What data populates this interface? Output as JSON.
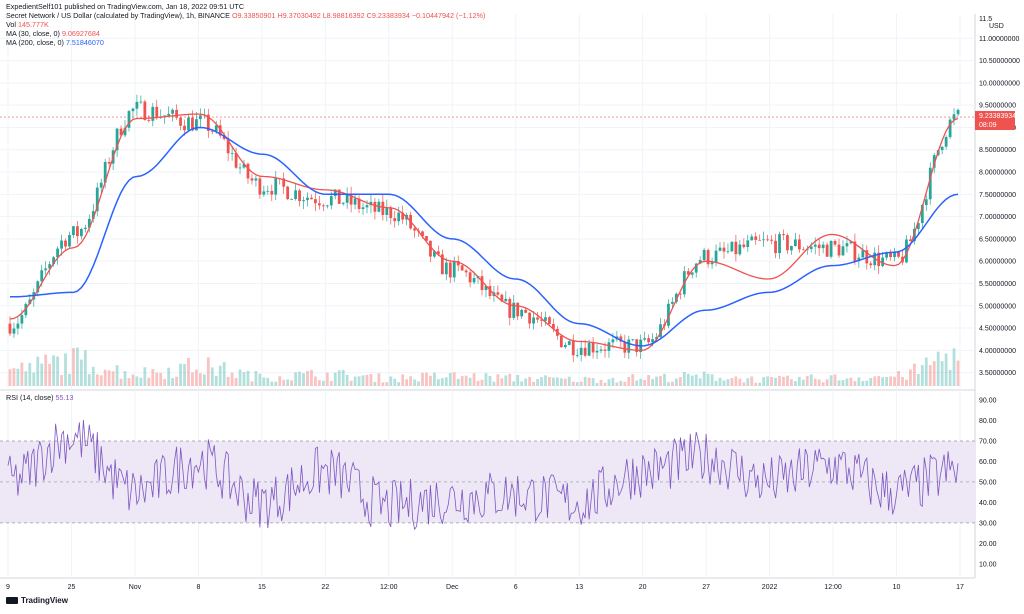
{
  "header": {
    "publisher": "ExpedientSelf101 published on TradingView.com, Jan 18, 2022 09:51 UTC",
    "symbol": "Secret Network / US Dollar (calculated by TradingView), 1h, BINANCE",
    "ohlc": "O9.33850901 H9.37030492 L8.98816392 C9.23383934 −0.10447942 (−1.12%)",
    "vol_label": "Vol",
    "vol_value": "145.777K",
    "ma30_label": "MA (30, close, 0)",
    "ma30_value": "9.06927684",
    "ma200_label": "MA (200, close, 0)",
    "ma200_value": "7.51846070",
    "rsi_label": "RSI (14, close)",
    "rsi_value": "55.13"
  },
  "price_axis": {
    "currency": "USD",
    "top_label": "11.5",
    "current_price": "9.23383934",
    "countdown": "08:09"
  },
  "footer": {
    "brand": "TradingView"
  },
  "colors": {
    "up": "#26a69a",
    "down": "#ef5350",
    "ma30": "#ef5350",
    "ma200": "#2962ff",
    "rsi": "#7e57c2",
    "rsi_band": "#ede7f6",
    "grid": "#f0f3fa"
  },
  "chart_data": [
    {
      "type": "line",
      "title": "Secret Network / US Dollar (calculated by TradingView), 1h, BINANCE",
      "x_ticks": [
        "9",
        "25",
        "Nov",
        "8",
        "15",
        "22",
        "12:00",
        "Dec",
        "6",
        "13",
        "20",
        "27",
        "2022",
        "12:00",
        "10",
        "17"
      ],
      "y_ticks": [
        "3.50000000",
        "4.00000000",
        "4.50000000",
        "5.00000000",
        "5.50000000",
        "6.00000000",
        "6.50000000",
        "7.00000000",
        "7.50000000",
        "8.00000000",
        "8.50000000",
        "9.00000000",
        "9.50000000",
        "10.00000000",
        "10.50000000",
        "11.00000000"
      ],
      "ylim": [
        3.2,
        11.5
      ],
      "series": [
        {
          "name": "MA (30, close, 0)",
          "x": [
            "9",
            "25",
            "Nov",
            "8",
            "15",
            "22",
            "12:00",
            "Dec",
            "6",
            "13",
            "20",
            "27",
            "2022",
            "12:00",
            "10",
            "17"
          ],
          "values": [
            4.7,
            6.3,
            9.2,
            9.3,
            7.9,
            7.6,
            7.2,
            6.0,
            5.0,
            4.2,
            4.0,
            6.0,
            5.6,
            6.6,
            5.9,
            9.2
          ]
        },
        {
          "name": "MA (200, close, 0)",
          "x": [
            "9",
            "25",
            "Nov",
            "8",
            "15",
            "22",
            "12:00",
            "Dec",
            "6",
            "13",
            "20",
            "27",
            "2022",
            "12:00",
            "10",
            "17"
          ],
          "values": [
            5.2,
            5.3,
            7.9,
            9.0,
            8.4,
            7.5,
            7.5,
            6.5,
            5.6,
            4.6,
            4.1,
            4.9,
            5.3,
            5.9,
            6.2,
            7.5
          ]
        }
      ],
      "price_series": {
        "x": [
          "9",
          "25",
          "Nov",
          "8",
          "15",
          "22",
          "12:00",
          "Dec",
          "6",
          "13",
          "20",
          "27",
          "2022",
          "12:00",
          "10",
          "17"
        ],
        "values": [
          4.6,
          6.6,
          9.4,
          9.1,
          7.7,
          7.4,
          7.1,
          5.8,
          4.9,
          4.1,
          4.1,
          6.1,
          6.4,
          6.3,
          6.0,
          9.23
        ]
      },
      "volume_series": {
        "name": "Vol",
        "values": [
          0.5,
          0.8,
          0.4,
          0.6,
          0.3,
          0.35,
          0.25,
          0.3,
          0.25,
          0.2,
          0.25,
          0.3,
          0.2,
          0.25,
          0.3,
          1.0
        ]
      }
    },
    {
      "type": "line",
      "title": "RSI (14, close)",
      "x_ticks": [
        "9",
        "25",
        "Nov",
        "8",
        "15",
        "22",
        "12:00",
        "Dec",
        "6",
        "13",
        "20",
        "27",
        "2022",
        "12:00",
        "10",
        "17"
      ],
      "y_ticks": [
        "10.00",
        "20.00",
        "30.00",
        "40.00",
        "50.00",
        "60.00",
        "70.00",
        "80.00",
        "90.00"
      ],
      "ylim": [
        5,
        92
      ],
      "bands": {
        "upper": 70,
        "middle": 50,
        "lower": 30
      },
      "series": [
        {
          "name": "RSI (14, close)",
          "x": [
            "9",
            "25",
            "Nov",
            "8",
            "15",
            "22",
            "12:00",
            "Dec",
            "6",
            "13",
            "20",
            "27",
            "2022",
            "12:00",
            "10",
            "17"
          ],
          "values": [
            50,
            72,
            45,
            60,
            40,
            55,
            38,
            42,
            44,
            40,
            55,
            62,
            50,
            58,
            45,
            55.13
          ]
        }
      ]
    }
  ]
}
